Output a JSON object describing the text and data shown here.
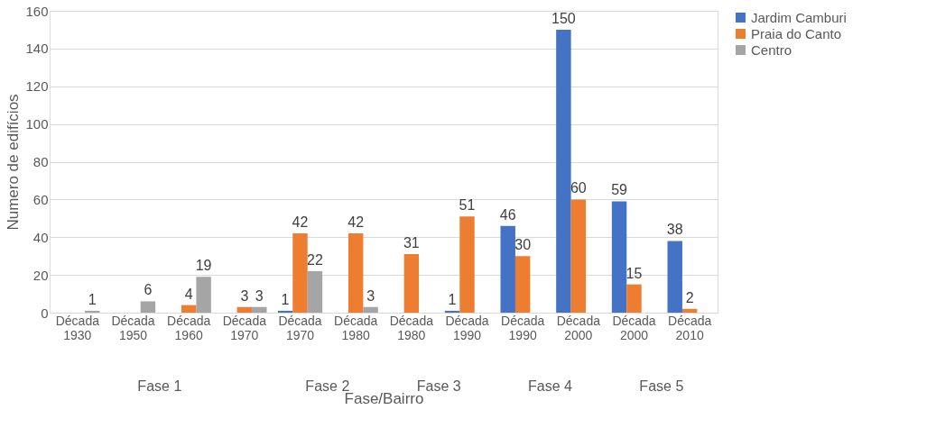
{
  "chart_data": {
    "type": "bar",
    "categories": [
      "Década 1930",
      "Década 1950",
      "Década 1960",
      "Década 1970",
      "Década 1970",
      "Década 1980",
      "Década 1980",
      "Década 1990",
      "Década 1990",
      "Década 2000",
      "Década 2000",
      "Década 2010"
    ],
    "series": [
      {
        "name": "Jardim Camburi",
        "color": "#4472c4",
        "values": [
          null,
          null,
          null,
          null,
          1,
          null,
          null,
          1,
          46,
          150,
          59,
          38
        ]
      },
      {
        "name": "Praia do Canto",
        "color": "#ed7d31",
        "values": [
          null,
          null,
          4,
          3,
          42,
          42,
          31,
          51,
          30,
          60,
          15,
          2
        ]
      },
      {
        "name": "Centro",
        "color": "#a5a5a5",
        "values": [
          1,
          6,
          19,
          3,
          22,
          3,
          null,
          null,
          null,
          null,
          null,
          null
        ]
      }
    ],
    "xlabel": "Fase/Bairro",
    "ylabel": "Numero de edifícios",
    "annotations": [
      "Fase 1",
      "Fase 2",
      "Fase 3",
      "Fase 4",
      "Fase 5"
    ],
    "ylim": [
      0,
      160
    ],
    "yticks": [
      0,
      20,
      40,
      60,
      80,
      100,
      120,
      140,
      160
    ],
    "grid": "y",
    "legend": "right",
    "data_labels": true
  }
}
